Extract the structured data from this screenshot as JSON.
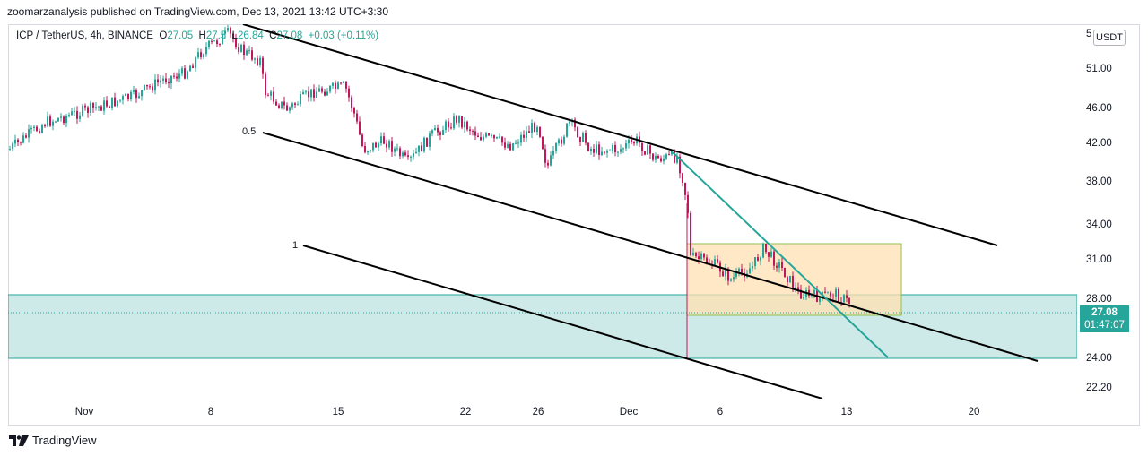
{
  "header": {
    "text": "zoomarzanalysis published on TradingView.com, Dec 13, 2021 13:42 UTC+3:30"
  },
  "legend": {
    "symbol": "ICP / TetherUS, 4h, BINANCE",
    "o_label": "O",
    "o": "27.05",
    "h_label": "H",
    "h": "27.5",
    "l_label": "L",
    "l": "26.84",
    "c_label": "C",
    "c": "27.08",
    "change": "+0.03 (+0.11%)"
  },
  "y_axis": {
    "currency": "USDT",
    "top_partial": "5",
    "ticks": [
      "51.00",
      "46.00",
      "42.00",
      "38.00",
      "34.00",
      "31.00",
      "28.00",
      "24.00",
      "22.20"
    ]
  },
  "x_axis": {
    "ticks": [
      "Nov",
      "8",
      "15",
      "22",
      "26",
      "Dec",
      "6",
      "13",
      "20"
    ]
  },
  "price_tag": {
    "price": "27.08",
    "countdown": "01:47:07"
  },
  "channel_labels": {
    "half": "0.5",
    "one": "1"
  },
  "footer": {
    "brand": "TradingView",
    "logo_icon": "tradingview-logo-icon"
  },
  "colors": {
    "up": "#26a69a",
    "down": "#c2185b",
    "zone": "#b2dfdb",
    "box": "#ffe0b2",
    "trend": "#26a69a"
  }
}
